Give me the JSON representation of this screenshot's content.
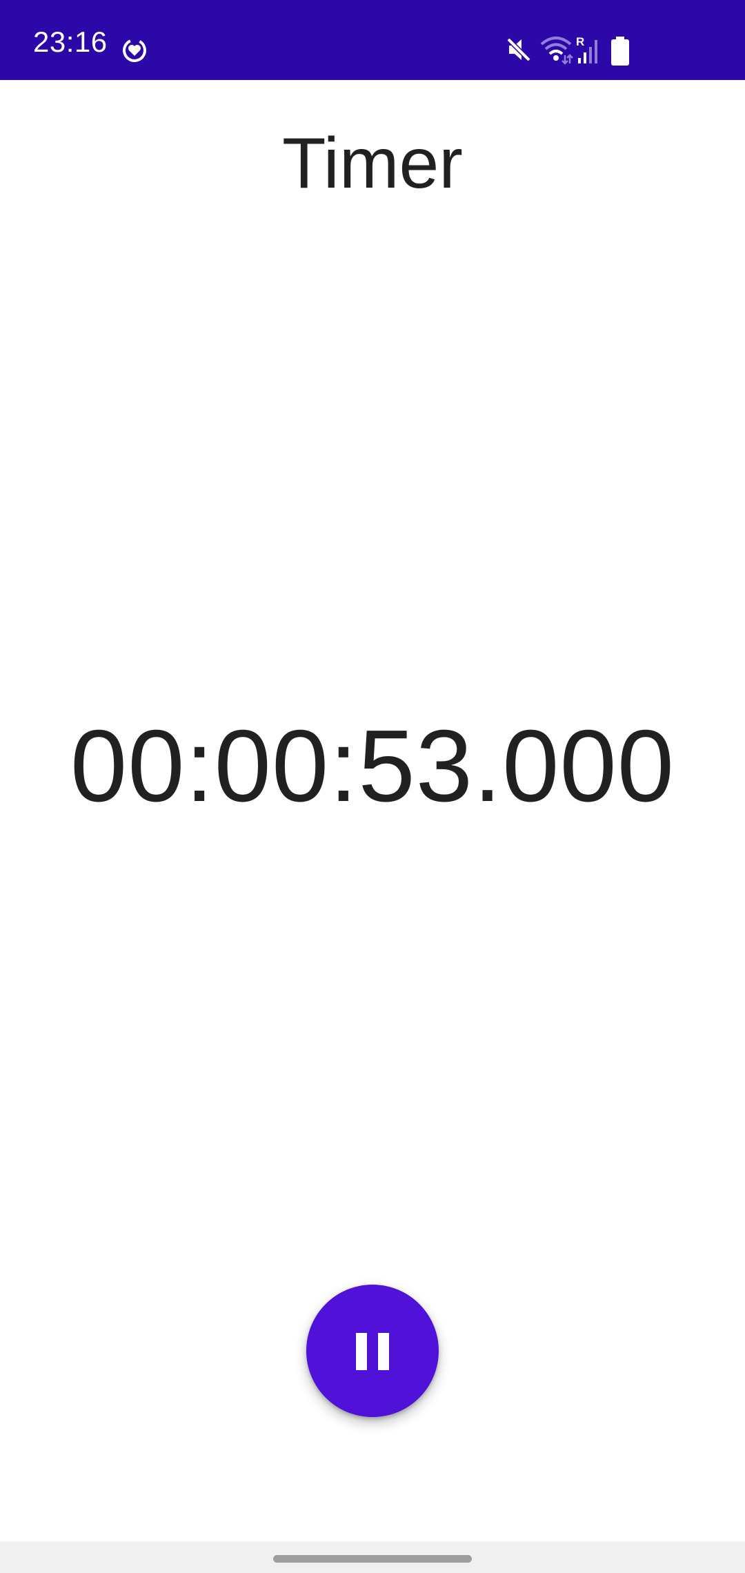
{
  "status_bar": {
    "time": "23:16",
    "background_color": "#2c08a8",
    "icons": [
      "app-heart-ring-icon",
      "mute-icon",
      "wifi-icon",
      "signal-roaming-icon",
      "battery-icon"
    ],
    "roaming_label": "R"
  },
  "header": {
    "title": "Timer"
  },
  "timer": {
    "display": "00:00:53.000"
  },
  "controls": {
    "pause_button": {
      "icon": "pause-icon",
      "color": "#5012d9"
    }
  },
  "navigation": {
    "handle": "home-handle"
  }
}
